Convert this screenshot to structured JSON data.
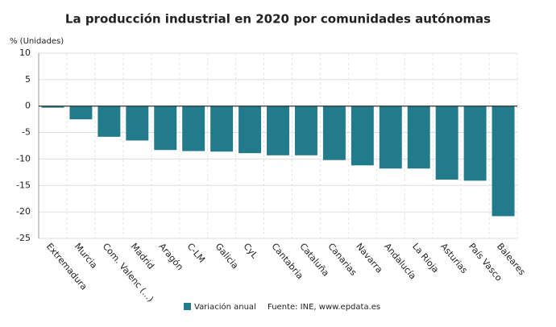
{
  "chart_data": {
    "type": "bar",
    "title": "La producción industrial en 2020 por comunidades autónomas",
    "y_label": "% (Unidades)",
    "categories": [
      "Extremadura",
      "Murcia",
      "Com. Valenc (...)",
      "Madrid",
      "Aragón",
      "C-LM",
      "Galicia",
      "CyL",
      "Cantabria",
      "Cataluña",
      "Canarias",
      "Navarra",
      "Andalucía",
      "La Rioja",
      "Asturias",
      "País Vasco",
      "Baleares"
    ],
    "series": [
      {
        "name": "Variación anual",
        "color": "#217b8b",
        "values": [
          -0.3,
          -2.5,
          -5.8,
          -6.5,
          -8.3,
          -8.5,
          -8.6,
          -8.9,
          -9.3,
          -9.3,
          -10.2,
          -11.2,
          -11.8,
          -11.8,
          -13.9,
          -14.1,
          -20.8
        ]
      }
    ],
    "ylim": [
      -25,
      10
    ],
    "yticks": [
      -25,
      -20,
      -15,
      -10,
      -5,
      0,
      5,
      10
    ],
    "grid": true,
    "source": "Fuente: INE, www.epdata.es"
  }
}
